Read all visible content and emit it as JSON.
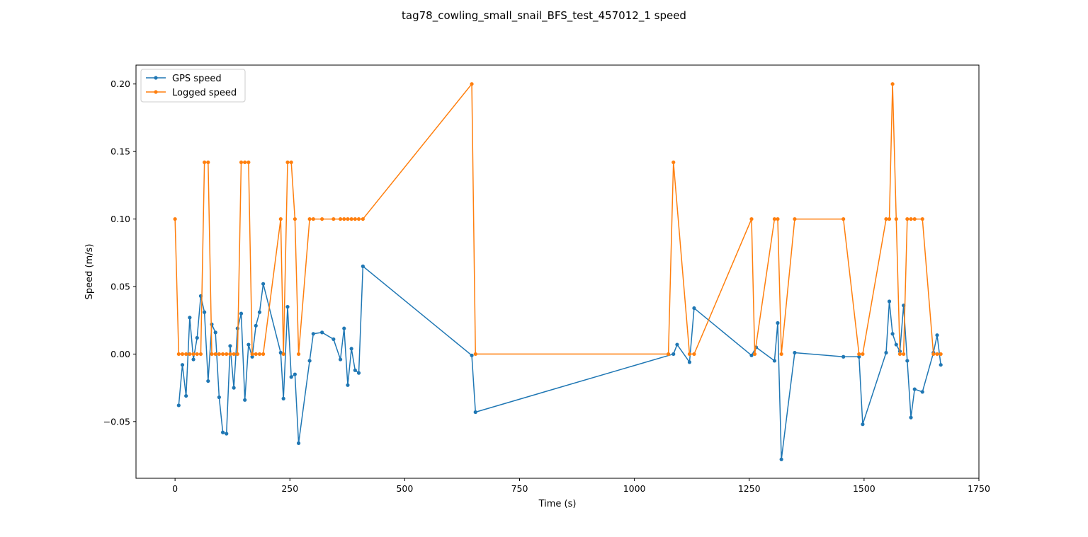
{
  "chart_data": {
    "type": "line",
    "title": "tag78_cowling_small_snail_BFS_test_457012_1 speed",
    "xlabel": "Time (s)",
    "ylabel": "Speed (m/s)",
    "xlim": [
      -85,
      1750
    ],
    "ylim": [
      -0.092,
      0.214
    ],
    "xticks": [
      0,
      250,
      500,
      750,
      1000,
      1250,
      1500,
      1750
    ],
    "yticks": [
      -0.05,
      0.0,
      0.05,
      0.1,
      0.15,
      0.2
    ],
    "ytick_labels": [
      "−0.05",
      "0.00",
      "0.05",
      "0.10",
      "0.15",
      "0.20"
    ],
    "xtick_labels": [
      "0",
      "250",
      "500",
      "750",
      "1000",
      "1250",
      "1500",
      "1750"
    ],
    "grid": false,
    "legend_position": "upper-left",
    "series": [
      {
        "name": "GPS speed",
        "color": "#1f77b4",
        "x": [
          8,
          16,
          24,
          32,
          40,
          48,
          56,
          64,
          72,
          80,
          88,
          96,
          104,
          112,
          120,
          128,
          136,
          144,
          152,
          160,
          168,
          176,
          184,
          192,
          230,
          236,
          245,
          253,
          261,
          269,
          293,
          301,
          320,
          345,
          360,
          368,
          376,
          384,
          392,
          400,
          409,
          646,
          654,
          1085,
          1093,
          1120,
          1130,
          1255,
          1265,
          1305,
          1312,
          1320,
          1349,
          1455,
          1489,
          1497,
          1548,
          1555,
          1562,
          1570,
          1578,
          1586,
          1594,
          1602,
          1610,
          1627,
          1651,
          1659,
          1667
        ],
        "y": [
          -0.038,
          -0.008,
          -0.031,
          0.027,
          -0.004,
          0.012,
          0.043,
          0.031,
          -0.02,
          0.022,
          0.016,
          -0.032,
          -0.058,
          -0.059,
          0.006,
          -0.025,
          0.019,
          0.03,
          -0.034,
          0.007,
          -0.002,
          0.021,
          0.031,
          0.052,
          0.001,
          -0.033,
          0.035,
          -0.017,
          -0.015,
          -0.066,
          -0.005,
          0.015,
          0.016,
          0.011,
          -0.004,
          0.019,
          -0.023,
          0.004,
          -0.012,
          -0.014,
          0.065,
          -0.001,
          -0.043,
          0.0,
          0.007,
          -0.006,
          0.034,
          -0.001,
          0.005,
          -0.005,
          0.023,
          -0.078,
          0.001,
          -0.002,
          -0.002,
          -0.052,
          0.001,
          0.039,
          0.015,
          0.007,
          0.002,
          0.036,
          -0.005,
          -0.047,
          -0.026,
          -0.028,
          0.001,
          0.014,
          -0.008
        ]
      },
      {
        "name": "Logged speed",
        "color": "#ff7f0e",
        "x": [
          0,
          8,
          16,
          24,
          32,
          40,
          48,
          56,
          64,
          72,
          80,
          88,
          96,
          104,
          112,
          120,
          128,
          136,
          144,
          152,
          160,
          168,
          176,
          184,
          192,
          230,
          236,
          245,
          253,
          261,
          269,
          293,
          301,
          320,
          345,
          360,
          368,
          376,
          384,
          392,
          400,
          409,
          646,
          654,
          1074,
          1085,
          1120,
          1130,
          1255,
          1262,
          1305,
          1312,
          1320,
          1349,
          1455,
          1489,
          1497,
          1548,
          1555,
          1562,
          1570,
          1578,
          1586,
          1594,
          1602,
          1610,
          1627,
          1651,
          1659,
          1667
        ],
        "y": [
          0.1,
          0.0,
          0.0,
          0.0,
          0.0,
          0.0,
          0.0,
          0.0,
          0.142,
          0.142,
          0.0,
          0.0,
          0.0,
          0.0,
          0.0,
          0.0,
          0.0,
          0.0,
          0.142,
          0.142,
          0.142,
          0.0,
          0.0,
          0.0,
          0.0,
          0.1,
          0.0,
          0.142,
          0.142,
          0.1,
          0.0,
          0.1,
          0.1,
          0.1,
          0.1,
          0.1,
          0.1,
          0.1,
          0.1,
          0.1,
          0.1,
          0.1,
          0.2,
          0.0,
          0.0,
          0.142,
          0.0,
          0.0,
          0.1,
          0.0,
          0.1,
          0.1,
          0.0,
          0.1,
          0.1,
          0.0,
          0.0,
          0.1,
          0.1,
          0.2,
          0.1,
          0.0,
          0.0,
          0.1,
          0.1,
          0.1,
          0.1,
          0.0,
          0.0,
          0.0
        ]
      }
    ]
  }
}
